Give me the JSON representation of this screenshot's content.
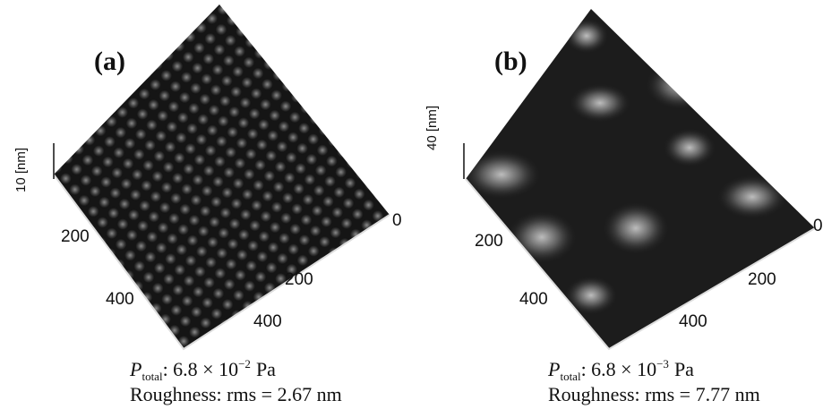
{
  "panels": [
    {
      "label": "(a)",
      "z_axis_label": "10 [nm]",
      "left_ticks": [
        "200",
        "400"
      ],
      "right_ticks": [
        "0",
        "200",
        "400"
      ],
      "caption": {
        "symbol": "P",
        "subscript": "total",
        "value": ": 6.8 × 10",
        "exponent": "−2",
        "unit": "Pa",
        "roughness": "Roughness: rms = 2.67 nm"
      }
    },
    {
      "label": "(b)",
      "z_axis_label": "40 [nm]",
      "left_ticks": [
        "200",
        "400"
      ],
      "right_ticks": [
        "0",
        "200",
        "400"
      ],
      "caption": {
        "symbol": "P",
        "subscript": "total",
        "value": ": 6.8 × 10",
        "exponent": "−3",
        "unit": "Pa",
        "roughness": "Roughness: rms = 7.77 nm"
      }
    }
  ]
}
